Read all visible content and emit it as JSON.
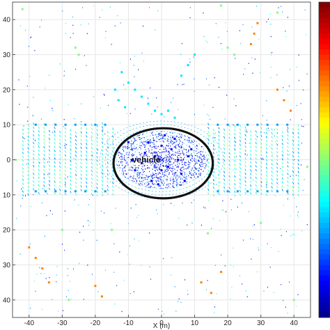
{
  "chart_data": {
    "type": "scatter",
    "title": "",
    "xlabel": "X (m)",
    "ylabel": "",
    "xlim": [
      -45,
      45
    ],
    "ylim": [
      -45,
      45
    ],
    "x_ticks": [
      -40,
      -30,
      -20,
      -10,
      0,
      10,
      20,
      30,
      40
    ],
    "y_ticks": [
      40,
      30,
      20,
      10,
      0,
      -10,
      -20,
      -30,
      -40
    ],
    "y_tick_labels_display": [
      "40",
      "30",
      "20",
      "10",
      "0",
      "10",
      "20",
      "30",
      "40"
    ],
    "grid": true,
    "colorbar": {
      "colormap": "jet",
      "position": "right"
    },
    "annotation": {
      "text": "vehicle",
      "x": -3,
      "y": 0
    },
    "highlight_ellipse": {
      "center": [
        0.5,
        -1
      ],
      "radius_x": 15,
      "radius_y": 10
    },
    "series": [
      {
        "values": [
          [
            -10,
            5
          ],
          [
            -8,
            -3
          ],
          [
            -5,
            2
          ],
          [
            -3,
            -6
          ],
          [
            0,
            4
          ],
          [
            2,
            -2
          ],
          [
            4,
            6
          ],
          [
            6,
            -4
          ],
          [
            8,
            1
          ],
          [
            -2,
            1
          ],
          [
            -6,
            -1
          ],
          [
            3,
            3
          ],
          [
            -9,
            0
          ],
          [
            7,
            -6
          ],
          [
            -1,
            -7
          ],
          [
            1,
            7
          ],
          [
            5,
            0
          ],
          [
            -4,
            5
          ],
          [
            0,
            -3
          ],
          [
            9,
            3
          ]
        ]
      },
      {
        "values": [
          [
            -38,
            10
          ],
          [
            -35,
            10
          ],
          [
            -32,
            10
          ],
          [
            -29,
            10
          ],
          [
            -26,
            10
          ],
          [
            -23,
            10
          ],
          [
            -20,
            10
          ],
          [
            -17,
            10
          ],
          [
            17,
            10
          ],
          [
            20,
            10
          ],
          [
            23,
            10
          ],
          [
            26,
            10
          ],
          [
            29,
            10
          ],
          [
            32,
            10
          ],
          [
            35,
            10
          ],
          [
            38,
            10
          ],
          [
            -38,
            -9
          ],
          [
            -35,
            -9
          ],
          [
            -32,
            -9
          ],
          [
            -29,
            -9
          ],
          [
            -26,
            -9
          ],
          [
            -23,
            -9
          ],
          [
            -20,
            -9
          ],
          [
            -17,
            -9
          ],
          [
            17,
            -9
          ],
          [
            20,
            -9
          ],
          [
            23,
            -9
          ],
          [
            26,
            -9
          ],
          [
            29,
            -9
          ],
          [
            32,
            -9
          ],
          [
            35,
            -9
          ],
          [
            38,
            -9
          ]
        ]
      },
      {
        "values": [
          [
            -12,
            25
          ],
          [
            -10,
            22
          ],
          [
            -8,
            20
          ],
          [
            -6,
            18
          ],
          [
            -4,
            16
          ],
          [
            -2,
            14
          ],
          [
            0,
            13
          ],
          [
            2,
            14
          ],
          [
            4,
            12
          ],
          [
            -14,
            20
          ],
          [
            -13,
            17
          ],
          [
            -11,
            15
          ],
          [
            6,
            24
          ],
          [
            8,
            27
          ],
          [
            10,
            30
          ]
        ]
      },
      {
        "values": [
          [
            28,
            36
          ],
          [
            29,
            39
          ],
          [
            27,
            33
          ],
          [
            35,
            20
          ],
          [
            37,
            17
          ],
          [
            39,
            14
          ],
          [
            -40,
            -25
          ],
          [
            -38,
            -28
          ],
          [
            -36,
            -31
          ],
          [
            -34,
            -35
          ],
          [
            12,
            -35
          ],
          [
            15,
            -38
          ],
          [
            18,
            -32
          ],
          [
            -20,
            -36
          ],
          [
            -18,
            -39
          ]
        ]
      },
      {
        "values": [
          [
            -26,
            32
          ],
          [
            -25,
            30
          ],
          [
            20,
            32
          ],
          [
            22,
            30
          ],
          [
            -42,
            43
          ],
          [
            18,
            44
          ],
          [
            -30,
            -20
          ],
          [
            30,
            -18
          ],
          [
            -28,
            -40
          ],
          [
            40,
            -40
          ],
          [
            35,
            42
          ],
          [
            -15,
            -20
          ],
          [
            14,
            -21
          ],
          [
            -44,
            0
          ],
          [
            44,
            -2
          ]
        ]
      }
    ]
  }
}
